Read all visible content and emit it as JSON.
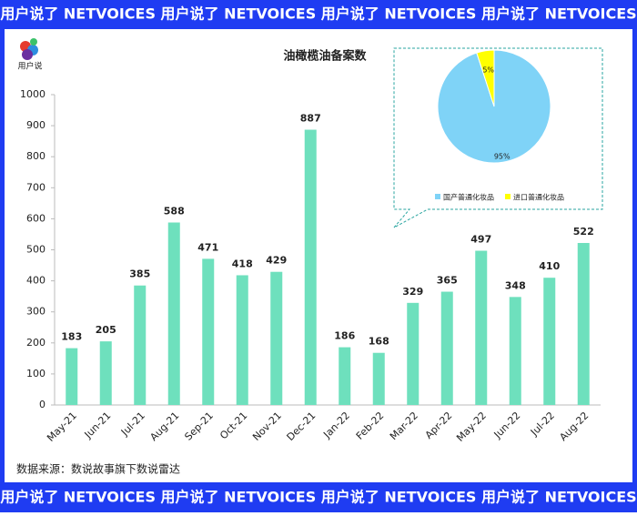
{
  "banner": "用户说了 NETVOICES 用户说了 NETVOICES 用户说了 NETVOICES 用户说了 NETVOICES",
  "logo": "用户说",
  "source": "数据来源：数说故事旗下数说雷达",
  "chart_data": [
    {
      "type": "bar",
      "title": "油橄榄油备案数",
      "categories": [
        "May-21",
        "Jun-21",
        "Jul-21",
        "Aug-21",
        "Sep-21",
        "Oct-21",
        "Nov-21",
        "Dec-21",
        "Jan-22",
        "Feb-22",
        "Mar-22",
        "Apr-22",
        "May-22",
        "Jun-22",
        "Jul-22",
        "Aug-22"
      ],
      "values": [
        183,
        205,
        385,
        588,
        471,
        418,
        429,
        887,
        186,
        168,
        329,
        365,
        497,
        348,
        410,
        522
      ],
      "color": "#6ee0bd",
      "ylim": [
        0,
        1000
      ],
      "yticks": [
        0,
        100,
        200,
        300,
        400,
        500,
        600,
        700,
        800,
        900,
        1000
      ],
      "grid": false
    },
    {
      "type": "pie",
      "labels": [
        "国产普通化妆品",
        "进口普通化妆品"
      ],
      "values": [
        95,
        5
      ],
      "value_labels": [
        "95%",
        "5%"
      ],
      "colors": [
        "#7fd3f7",
        "#ffff00"
      ],
      "legend": "bottom"
    }
  ]
}
